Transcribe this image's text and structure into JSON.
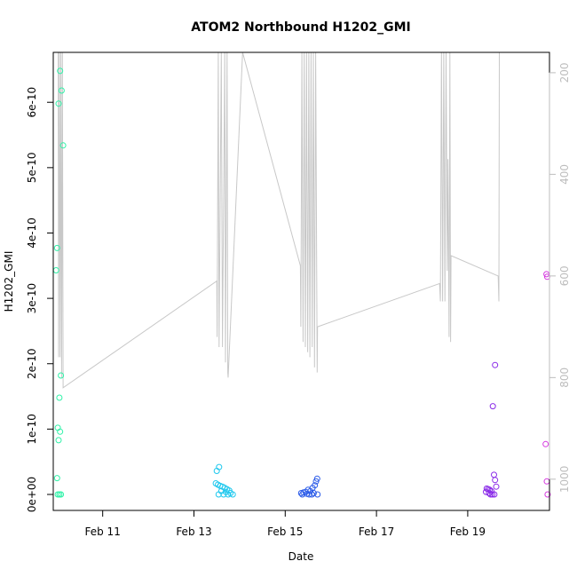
{
  "chart_data": {
    "type": "scatter",
    "title": "ATOM2 Northbound H1202_GMI",
    "xlabel": "Date",
    "ylabel": "H1202_GMI",
    "xlim": [
      "2024-02-09T22:00",
      "2024-02-20T19:00"
    ],
    "ylim": [
      0,
      6.75e-10
    ],
    "x_ticks": [
      {
        "date": "2024-02-11",
        "label": "Feb 11"
      },
      {
        "date": "2024-02-13",
        "label": "Feb 13"
      },
      {
        "date": "2024-02-15",
        "label": "Feb 15"
      },
      {
        "date": "2024-02-17",
        "label": "Feb 17"
      },
      {
        "date": "2024-02-19",
        "label": "Feb 19"
      }
    ],
    "y_ticks": [
      {
        "value": 0,
        "label": "0e+00"
      },
      {
        "value": 1e-10,
        "label": "1e-10"
      },
      {
        "value": 2e-10,
        "label": "2e-10"
      },
      {
        "value": 3e-10,
        "label": "3e-10"
      },
      {
        "value": 4e-10,
        "label": "4e-10"
      },
      {
        "value": 5e-10,
        "label": "5e-10"
      },
      {
        "value": 6e-10,
        "label": "6e-10"
      }
    ],
    "secondary_axis": {
      "side": "right",
      "reversed": true,
      "color": "#bdbdbd",
      "ylim": [
        1030,
        160
      ],
      "ticks": [
        {
          "value": 200,
          "label": "200"
        },
        {
          "value": 400,
          "label": "400"
        },
        {
          "value": 600,
          "label": "600"
        },
        {
          "value": 800,
          "label": "800"
        },
        {
          "value": 1000,
          "label": "1000"
        }
      ]
    },
    "series": [
      {
        "kind": "points",
        "marker": "open-circle",
        "points": [
          {
            "x": "2024-02-10T01:36",
            "y": 6.48e-10,
            "color": "#2ff2a8"
          },
          {
            "x": "2024-02-10T02:24",
            "y": 6.18e-10,
            "color": "#2ff2a8"
          },
          {
            "x": "2024-02-10T00:48",
            "y": 5.98e-10,
            "color": "#2ff2a8"
          },
          {
            "x": "2024-02-10T03:12",
            "y": 5.34e-10,
            "color": "#2ff2a8"
          },
          {
            "x": "2024-02-10T00:00",
            "y": 3.77e-10,
            "color": "#2ff2a8"
          },
          {
            "x": "2024-02-09T23:30",
            "y": 3.43e-10,
            "color": "#2ff2a8"
          },
          {
            "x": "2024-02-10T02:00",
            "y": 1.82e-10,
            "color": "#2ff2a8"
          },
          {
            "x": "2024-02-10T01:12",
            "y": 1.48e-10,
            "color": "#2ff2a8"
          },
          {
            "x": "2024-02-10T00:24",
            "y": 1.02e-10,
            "color": "#2ff2a8"
          },
          {
            "x": "2024-02-10T01:36",
            "y": 9.6e-11,
            "color": "#2ff2a8"
          },
          {
            "x": "2024-02-10T00:48",
            "y": 8.3e-11,
            "color": "#2ff2a8"
          },
          {
            "x": "2024-02-10T00:00",
            "y": 2.5e-11,
            "color": "#2ff2a8"
          },
          {
            "x": "2024-02-10T00:24",
            "y": 0.0,
            "color": "#2ff2a8"
          },
          {
            "x": "2024-02-10T01:12",
            "y": 0.0,
            "color": "#2ff2a8"
          },
          {
            "x": "2024-02-10T02:00",
            "y": 0.0,
            "color": "#2ff2a8"
          },
          {
            "x": "2024-02-13T13:12",
            "y": 4.2e-11,
            "color": "#1fc8ee"
          },
          {
            "x": "2024-02-13T12:00",
            "y": 3.6e-11,
            "color": "#1fc8ee"
          },
          {
            "x": "2024-02-13T11:30",
            "y": 1.7e-11,
            "color": "#1fc8ee"
          },
          {
            "x": "2024-02-13T12:36",
            "y": 1.5e-11,
            "color": "#1fc8ee"
          },
          {
            "x": "2024-02-13T13:48",
            "y": 1.3e-11,
            "color": "#1fc8ee"
          },
          {
            "x": "2024-02-13T15:00",
            "y": 1.2e-11,
            "color": "#1fc8ee"
          },
          {
            "x": "2024-02-13T16:12",
            "y": 1e-11,
            "color": "#1fc8ee"
          },
          {
            "x": "2024-02-13T17:24",
            "y": 8e-12,
            "color": "#1fc8ee"
          },
          {
            "x": "2024-02-13T18:36",
            "y": 6e-12,
            "color": "#1fc8ee"
          },
          {
            "x": "2024-02-13T14:24",
            "y": 5e-12,
            "color": "#1fc8ee"
          },
          {
            "x": "2024-02-13T16:48",
            "y": 4e-12,
            "color": "#1fc8ee"
          },
          {
            "x": "2024-02-13T19:12",
            "y": 2e-12,
            "color": "#1fc8ee"
          },
          {
            "x": "2024-02-13T13:00",
            "y": 0.0,
            "color": "#1fc8ee"
          },
          {
            "x": "2024-02-13T15:36",
            "y": 0.0,
            "color": "#1fc8ee"
          },
          {
            "x": "2024-02-13T18:00",
            "y": 0.0,
            "color": "#1fc8ee"
          },
          {
            "x": "2024-02-13T20:24",
            "y": 0.0,
            "color": "#1fc8ee"
          },
          {
            "x": "2024-02-15T16:48",
            "y": 2.4e-11,
            "color": "#2b5be8"
          },
          {
            "x": "2024-02-15T16:12",
            "y": 2e-11,
            "color": "#2b5be8"
          },
          {
            "x": "2024-02-15T15:36",
            "y": 1.4e-11,
            "color": "#2b5be8"
          },
          {
            "x": "2024-02-15T14:24",
            "y": 1e-11,
            "color": "#2b5be8"
          },
          {
            "x": "2024-02-15T12:00",
            "y": 7e-12,
            "color": "#2b5be8"
          },
          {
            "x": "2024-02-15T13:12",
            "y": 5e-12,
            "color": "#2b5be8"
          },
          {
            "x": "2024-02-15T10:48",
            "y": 4e-12,
            "color": "#2b5be8"
          },
          {
            "x": "2024-02-15T09:36",
            "y": 3e-12,
            "color": "#2b5be8"
          },
          {
            "x": "2024-02-15T08:24",
            "y": 2e-12,
            "color": "#2b5be8"
          },
          {
            "x": "2024-02-15T15:00",
            "y": 2e-12,
            "color": "#2b5be8"
          },
          {
            "x": "2024-02-15T11:24",
            "y": 1e-12,
            "color": "#2b5be8"
          },
          {
            "x": "2024-02-15T09:00",
            "y": 0.0,
            "color": "#2b5be8"
          },
          {
            "x": "2024-02-15T12:36",
            "y": 0.0,
            "color": "#2b5be8"
          },
          {
            "x": "2024-02-15T14:00",
            "y": 0.0,
            "color": "#2b5be8"
          },
          {
            "x": "2024-02-15T17:00",
            "y": 0.0,
            "color": "#2b5be8"
          },
          {
            "x": "2024-02-19T14:24",
            "y": 1.98e-10,
            "color": "#8a2be8"
          },
          {
            "x": "2024-02-19T13:12",
            "y": 1.35e-10,
            "color": "#8a2be8"
          },
          {
            "x": "2024-02-19T13:48",
            "y": 3e-11,
            "color": "#8a2be8"
          },
          {
            "x": "2024-02-19T14:24",
            "y": 2.2e-11,
            "color": "#8a2be8"
          },
          {
            "x": "2024-02-19T15:00",
            "y": 1.2e-11,
            "color": "#8a2be8"
          },
          {
            "x": "2024-02-19T10:00",
            "y": 9e-12,
            "color": "#8a2be8"
          },
          {
            "x": "2024-02-19T10:48",
            "y": 8e-12,
            "color": "#8a2be8"
          },
          {
            "x": "2024-02-19T11:36",
            "y": 7e-12,
            "color": "#8a2be8"
          },
          {
            "x": "2024-02-19T12:24",
            "y": 5e-12,
            "color": "#8a2be8"
          },
          {
            "x": "2024-02-19T09:36",
            "y": 4e-12,
            "color": "#8a2be8"
          },
          {
            "x": "2024-02-19T11:12",
            "y": 2e-12,
            "color": "#8a2be8"
          },
          {
            "x": "2024-02-19T12:00",
            "y": 0.0,
            "color": "#8a2be8"
          },
          {
            "x": "2024-02-19T13:00",
            "y": 0.0,
            "color": "#8a2be8"
          },
          {
            "x": "2024-02-19T14:00",
            "y": 0.0,
            "color": "#8a2be8"
          },
          {
            "x": "2024-02-20T17:24",
            "y": 3.37e-10,
            "color": "#d63ae0"
          },
          {
            "x": "2024-02-20T17:48",
            "y": 3.33e-10,
            "color": "#d63ae0"
          },
          {
            "x": "2024-02-20T17:00",
            "y": 7.7e-11,
            "color": "#d63ae0"
          },
          {
            "x": "2024-02-20T17:36",
            "y": 2e-11,
            "color": "#d63ae0"
          },
          {
            "x": "2024-02-20T18:00",
            "y": 0.0,
            "color": "#d63ae0"
          }
        ]
      },
      {
        "kind": "line",
        "axis": "secondary",
        "color": "#c8c8c8",
        "points": [
          {
            "x": "2024-02-10T00:36",
            "y": 160
          },
          {
            "x": "2024-02-10T00:48",
            "y": 760
          },
          {
            "x": "2024-02-10T01:12",
            "y": 160
          },
          {
            "x": "2024-02-10T01:36",
            "y": 760
          },
          {
            "x": "2024-02-10T02:00",
            "y": 160
          },
          {
            "x": "2024-02-10T02:24",
            "y": 800
          },
          {
            "x": "2024-02-10T02:48",
            "y": 160
          },
          {
            "x": "2024-02-10T03:12",
            "y": 820
          },
          {
            "x": "2024-02-13T12:00",
            "y": 610
          },
          {
            "x": "2024-02-13T12:12",
            "y": 720
          },
          {
            "x": "2024-02-13T12:48",
            "y": 160
          },
          {
            "x": "2024-02-13T13:12",
            "y": 740
          },
          {
            "x": "2024-02-13T14:24",
            "y": 160
          },
          {
            "x": "2024-02-13T15:00",
            "y": 740
          },
          {
            "x": "2024-02-13T16:12",
            "y": 160
          },
          {
            "x": "2024-02-13T16:36",
            "y": 770
          },
          {
            "x": "2024-02-13T17:24",
            "y": 160
          },
          {
            "x": "2024-02-13T17:48",
            "y": 790
          },
          {
            "x": "2024-02-13T18:00",
            "y": 800
          },
          {
            "x": "2024-02-14T01:36",
            "y": 160
          },
          {
            "x": "2024-02-15T08:00",
            "y": 580
          },
          {
            "x": "2024-02-15T08:12",
            "y": 700
          },
          {
            "x": "2024-02-15T08:48",
            "y": 160
          },
          {
            "x": "2024-02-15T09:24",
            "y": 730
          },
          {
            "x": "2024-02-15T10:00",
            "y": 160
          },
          {
            "x": "2024-02-15T10:36",
            "y": 740
          },
          {
            "x": "2024-02-15T11:12",
            "y": 160
          },
          {
            "x": "2024-02-15T11:48",
            "y": 750
          },
          {
            "x": "2024-02-15T12:24",
            "y": 160
          },
          {
            "x": "2024-02-15T13:00",
            "y": 760
          },
          {
            "x": "2024-02-15T13:36",
            "y": 160
          },
          {
            "x": "2024-02-15T14:12",
            "y": 740
          },
          {
            "x": "2024-02-15T14:48",
            "y": 160
          },
          {
            "x": "2024-02-15T15:24",
            "y": 780
          },
          {
            "x": "2024-02-15T16:00",
            "y": 160
          },
          {
            "x": "2024-02-15T16:48",
            "y": 790
          },
          {
            "x": "2024-02-15T17:00",
            "y": 700
          },
          {
            "x": "2024-02-18T09:12",
            "y": 615
          },
          {
            "x": "2024-02-18T09:36",
            "y": 650
          },
          {
            "x": "2024-02-18T10:12",
            "y": 160
          },
          {
            "x": "2024-02-18T10:48",
            "y": 650
          },
          {
            "x": "2024-02-18T11:24",
            "y": 160
          },
          {
            "x": "2024-02-18T12:00",
            "y": 650
          },
          {
            "x": "2024-02-18T12:36",
            "y": 160
          },
          {
            "x": "2024-02-18T13:12",
            "y": 590
          },
          {
            "x": "2024-02-18T13:36",
            "y": 370
          },
          {
            "x": "2024-02-18T14:12",
            "y": 720
          },
          {
            "x": "2024-02-18T14:36",
            "y": 160
          },
          {
            "x": "2024-02-18T15:00",
            "y": 730
          },
          {
            "x": "2024-02-18T15:12",
            "y": 560
          },
          {
            "x": "2024-02-19T16:00",
            "y": 600
          },
          {
            "x": "2024-02-19T16:24",
            "y": 650
          },
          {
            "x": "2024-02-19T16:36",
            "y": 160
          }
        ]
      }
    ],
    "grid": false,
    "legend": "none"
  }
}
